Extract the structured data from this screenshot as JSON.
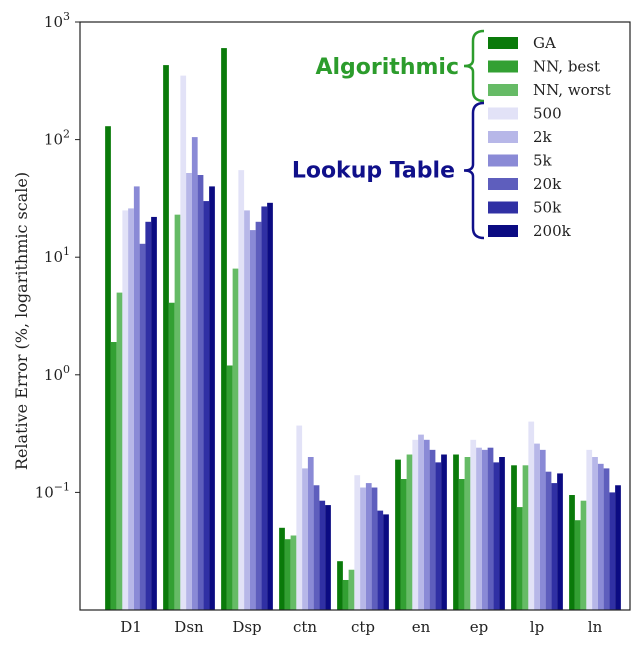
{
  "chart_data": {
    "type": "bar",
    "categories": [
      "D1",
      "Dsn",
      "Dsp",
      "ctn",
      "ctp",
      "en",
      "ep",
      "lp",
      "ln"
    ],
    "ylabel": "Relative Error (%, logarithmic scale)",
    "xlabel": "",
    "yscale": "log",
    "ylim": [
      0.01,
      1000
    ],
    "y_ticks": [
      {
        "base": "10",
        "exp": "3",
        "value": 1000
      },
      {
        "base": "10",
        "exp": "2",
        "value": 100
      },
      {
        "base": "10",
        "exp": "1",
        "value": 10
      },
      {
        "base": "10",
        "exp": "0",
        "value": 1
      },
      {
        "base": "10",
        "exp": "−1",
        "value": 0.1
      }
    ],
    "grid": false,
    "legend_position": "top-right",
    "series": [
      {
        "name": "GA",
        "color": "#0a7a0a",
        "group": "Algorithmic",
        "values": [
          130,
          430,
          600,
          0.05,
          0.026,
          0.19,
          0.21,
          0.17,
          0.095
        ]
      },
      {
        "name": "NN, best",
        "color": "#33a033",
        "group": "Algorithmic",
        "values": [
          1.9,
          4.1,
          1.2,
          0.04,
          0.018,
          0.13,
          0.13,
          0.075,
          0.058
        ]
      },
      {
        "name": "NN, worst",
        "color": "#66bb66",
        "group": "Algorithmic",
        "values": [
          5,
          23,
          8,
          0.043,
          0.022,
          0.21,
          0.2,
          0.17,
          0.085
        ]
      },
      {
        "name": "500",
        "color": "#e2e2f7",
        "group": "Lookup Table",
        "values": [
          25,
          350,
          55,
          0.37,
          0.14,
          0.28,
          0.28,
          0.4,
          0.23
        ]
      },
      {
        "name": "2k",
        "color": "#b7b7e8",
        "group": "Lookup Table",
        "values": [
          26,
          52,
          25,
          0.16,
          0.11,
          0.31,
          0.24,
          0.26,
          0.2
        ]
      },
      {
        "name": "5k",
        "color": "#8a8ad6",
        "group": "Lookup Table",
        "values": [
          40,
          105,
          17,
          0.2,
          0.12,
          0.28,
          0.23,
          0.23,
          0.175
        ]
      },
      {
        "name": "20k",
        "color": "#5e5ebd",
        "group": "Lookup Table",
        "values": [
          13,
          50,
          20,
          0.115,
          0.11,
          0.23,
          0.24,
          0.15,
          0.16
        ]
      },
      {
        "name": "50k",
        "color": "#3030a4",
        "group": "Lookup Table",
        "values": [
          20,
          30,
          27,
          0.085,
          0.07,
          0.18,
          0.18,
          0.12,
          0.1
        ]
      },
      {
        "name": "200k",
        "color": "#0b0b82",
        "group": "Lookup Table",
        "values": [
          22,
          40,
          29,
          0.078,
          0.065,
          0.21,
          0.2,
          0.145,
          0.115
        ]
      }
    ],
    "legend_groups": [
      {
        "label": "Algorithmic",
        "color": "#2c9c2c"
      },
      {
        "label": "Lookup Table",
        "color": "#10108a"
      }
    ]
  }
}
